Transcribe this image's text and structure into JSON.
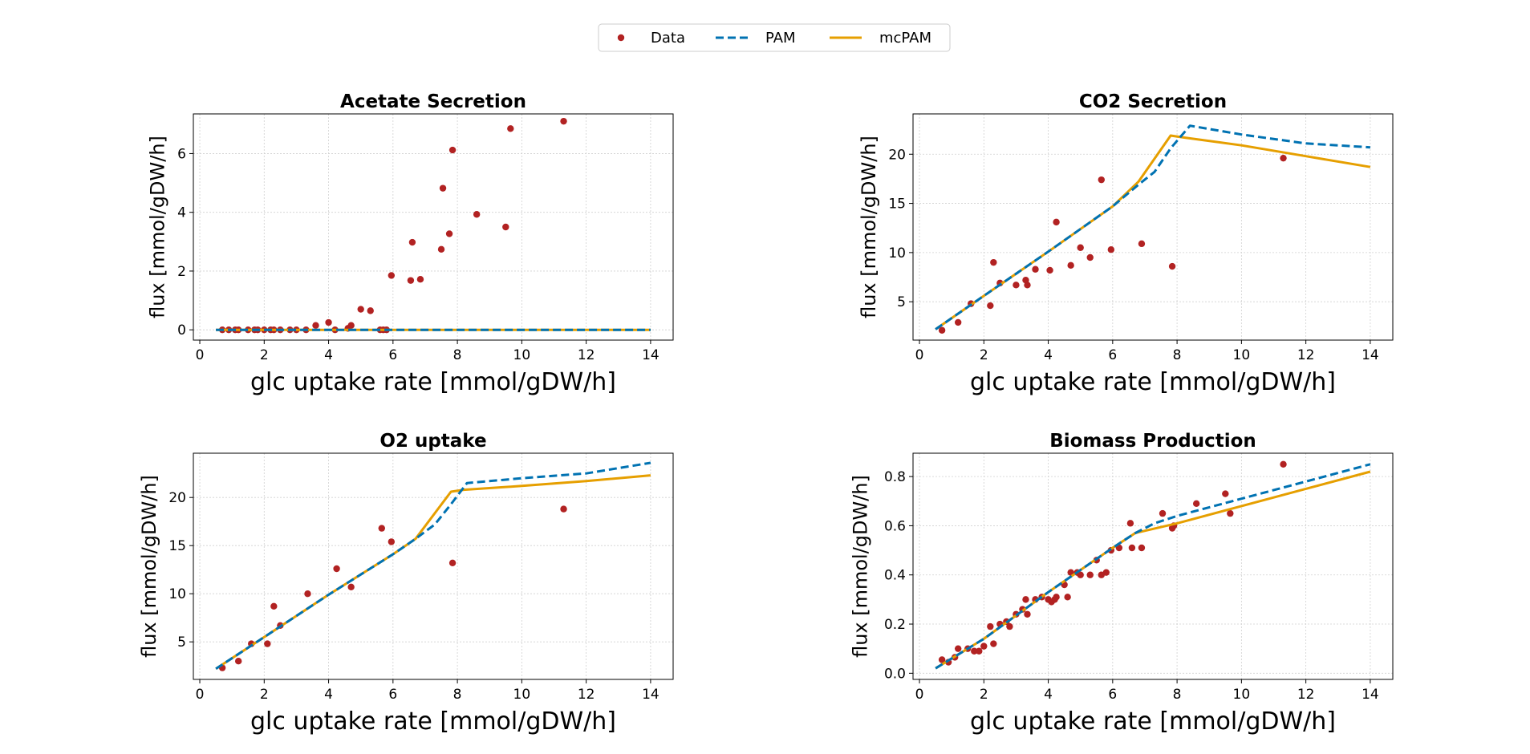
{
  "colors": {
    "data": "#b22222",
    "pam": "#0072b2",
    "mcpam": "#e69f00",
    "grid": "#d0d0d0"
  },
  "legend": {
    "placement": "top-center",
    "entries": [
      {
        "label": "Data",
        "style": "marker",
        "color_key": "data"
      },
      {
        "label": "PAM",
        "style": "dashed",
        "color_key": "pam"
      },
      {
        "label": "mcPAM",
        "style": "solid",
        "color_key": "mcpam"
      }
    ]
  },
  "chart_data": [
    {
      "type": "scatter",
      "title": "Acetate Secretion",
      "xlabel": "glc uptake rate [mmol/gDW/h]",
      "ylabel": "flux [mmol/gDW/h]",
      "xlim": [
        -0.2,
        14.7
      ],
      "ylim": [
        -0.35,
        7.35
      ],
      "xticks": [
        0,
        2,
        4,
        6,
        8,
        10,
        12,
        14
      ],
      "yticks": [
        0,
        2,
        4,
        6
      ],
      "grid": true,
      "series": [
        {
          "name": "Data",
          "kind": "points",
          "x": [
            0.7,
            0.9,
            1.1,
            1.2,
            1.5,
            1.7,
            1.8,
            2.0,
            2.2,
            2.3,
            2.5,
            2.8,
            3.0,
            3.3,
            3.6,
            4.0,
            4.2,
            4.6,
            4.7,
            5.0,
            5.3,
            5.6,
            5.7,
            5.8,
            5.95,
            6.55,
            6.6,
            6.85,
            7.5,
            7.55,
            7.75,
            7.85,
            8.6,
            9.5,
            9.65,
            11.3
          ],
          "y": [
            0,
            0,
            0,
            0,
            0,
            0,
            0,
            0,
            0,
            0,
            0,
            0,
            0,
            0,
            0.15,
            0.25,
            0,
            0.05,
            0.15,
            0.7,
            0.65,
            0,
            0,
            0,
            1.85,
            1.68,
            2.98,
            1.72,
            2.74,
            4.82,
            3.27,
            6.12,
            3.93,
            3.5,
            6.85,
            7.1
          ]
        },
        {
          "name": "PAM",
          "kind": "dashed",
          "x": [
            0.5,
            14
          ],
          "y": [
            0,
            0
          ]
        },
        {
          "name": "mcPAM",
          "kind": "solid",
          "x": [
            0.5,
            14
          ],
          "y": [
            0,
            0
          ]
        }
      ]
    },
    {
      "type": "scatter",
      "title": "CO2 Secretion",
      "xlabel": "glc uptake rate [mmol/gDW/h]",
      "ylabel": "flux [mmol/gDW/h]",
      "xlim": [
        -0.2,
        14.7
      ],
      "ylim": [
        1.1,
        24.1
      ],
      "xticks": [
        0,
        2,
        4,
        6,
        8,
        10,
        12,
        14
      ],
      "yticks": [
        5,
        10,
        15,
        20
      ],
      "grid": true,
      "series": [
        {
          "name": "Data",
          "kind": "points",
          "x": [
            0.7,
            1.2,
            1.6,
            2.2,
            2.3,
            2.5,
            3.0,
            3.3,
            3.35,
            3.6,
            4.05,
            4.25,
            4.7,
            5.0,
            5.3,
            5.65,
            5.95,
            6.9,
            7.85,
            11.3
          ],
          "y": [
            2.1,
            2.9,
            4.8,
            4.6,
            9.0,
            6.9,
            6.7,
            7.2,
            6.7,
            8.3,
            8.2,
            13.1,
            8.7,
            10.5,
            9.5,
            17.4,
            10.3,
            10.9,
            8.6,
            19.6
          ]
        },
        {
          "name": "PAM",
          "kind": "dashed",
          "x": [
            0.5,
            2,
            4,
            6,
            6.8,
            7.3,
            7.8,
            8.4,
            10,
            12,
            14
          ],
          "y": [
            2.2,
            5.6,
            10.1,
            14.7,
            16.9,
            18.2,
            20.6,
            22.9,
            22.0,
            21.1,
            20.7
          ]
        },
        {
          "name": "mcPAM",
          "kind": "solid",
          "x": [
            0.5,
            2,
            4,
            6,
            6.8,
            7.8,
            8.2,
            10,
            12,
            14
          ],
          "y": [
            2.2,
            5.6,
            10.1,
            14.7,
            17.2,
            21.9,
            21.7,
            20.9,
            19.8,
            18.7
          ]
        }
      ]
    },
    {
      "type": "scatter",
      "title": "O2 uptake",
      "xlabel": "glc uptake rate [mmol/gDW/h]",
      "ylabel": "flux [mmol/gDW/h]",
      "xlim": [
        -0.2,
        14.7
      ],
      "ylim": [
        1.1,
        24.6
      ],
      "xticks": [
        0,
        2,
        4,
        6,
        8,
        10,
        12,
        14
      ],
      "yticks": [
        5,
        10,
        15,
        20
      ],
      "grid": true,
      "series": [
        {
          "name": "Data",
          "kind": "points",
          "x": [
            0.7,
            1.2,
            1.6,
            2.1,
            2.3,
            2.5,
            3.35,
            4.25,
            4.7,
            5.65,
            5.95,
            7.85,
            11.3
          ],
          "y": [
            2.3,
            3.0,
            4.8,
            4.8,
            8.7,
            6.7,
            10.0,
            12.6,
            10.7,
            16.8,
            15.4,
            13.2,
            18.8
          ]
        },
        {
          "name": "PAM",
          "kind": "dashed",
          "x": [
            0.5,
            2,
            4,
            6,
            6.7,
            7.3,
            7.8,
            8.3,
            10,
            12,
            14
          ],
          "y": [
            2.2,
            5.5,
            9.9,
            14.1,
            15.7,
            17.2,
            19.3,
            21.5,
            22.0,
            22.5,
            23.6
          ]
        },
        {
          "name": "mcPAM",
          "kind": "solid",
          "x": [
            0.5,
            2,
            4,
            6,
            6.7,
            7.8,
            8.2,
            10,
            12,
            14
          ],
          "y": [
            2.2,
            5.5,
            9.9,
            14.1,
            15.7,
            20.6,
            20.8,
            21.2,
            21.7,
            22.3
          ]
        }
      ]
    },
    {
      "type": "scatter",
      "title": "Biomass Production",
      "xlabel": "glc uptake rate [mmol/gDW/h]",
      "ylabel": "flux [mmol/gDW/h]",
      "xlim": [
        -0.2,
        14.7
      ],
      "ylim": [
        -0.025,
        0.895
      ],
      "xticks": [
        0,
        2,
        4,
        6,
        8,
        10,
        12,
        14
      ],
      "yticks": [
        0.0,
        0.2,
        0.4,
        0.6,
        0.8
      ],
      "grid": true,
      "series": [
        {
          "name": "Data",
          "kind": "points",
          "x": [
            0.7,
            0.9,
            1.1,
            1.2,
            1.5,
            1.7,
            1.85,
            2.0,
            2.2,
            2.3,
            2.5,
            2.7,
            2.8,
            3.0,
            3.2,
            3.3,
            3.35,
            3.6,
            3.8,
            4.0,
            4.1,
            4.2,
            4.25,
            4.5,
            4.6,
            4.7,
            4.9,
            5.0,
            5.3,
            5.5,
            5.65,
            5.8,
            5.95,
            6.2,
            6.55,
            6.6,
            6.9,
            7.55,
            7.85,
            7.9,
            8.6,
            9.5,
            9.65,
            11.3
          ],
          "y": [
            0.055,
            0.045,
            0.065,
            0.1,
            0.1,
            0.09,
            0.09,
            0.11,
            0.19,
            0.12,
            0.2,
            0.21,
            0.19,
            0.24,
            0.26,
            0.3,
            0.24,
            0.3,
            0.31,
            0.3,
            0.29,
            0.3,
            0.31,
            0.36,
            0.31,
            0.41,
            0.41,
            0.4,
            0.4,
            0.46,
            0.4,
            0.41,
            0.5,
            0.51,
            0.61,
            0.51,
            0.51,
            0.65,
            0.59,
            0.6,
            0.69,
            0.73,
            0.65,
            0.85
          ]
        },
        {
          "name": "PAM",
          "kind": "dashed",
          "x": [
            0.5,
            2,
            4,
            6,
            6.7,
            7.3,
            8,
            10,
            12,
            14
          ],
          "y": [
            0.02,
            0.14,
            0.33,
            0.51,
            0.57,
            0.61,
            0.64,
            0.71,
            0.78,
            0.85
          ]
        },
        {
          "name": "mcPAM",
          "kind": "solid",
          "x": [
            0.5,
            2,
            4,
            6,
            6.7,
            8,
            10,
            12,
            14
          ],
          "y": [
            0.02,
            0.14,
            0.33,
            0.51,
            0.57,
            0.61,
            0.68,
            0.75,
            0.82
          ]
        }
      ]
    }
  ]
}
